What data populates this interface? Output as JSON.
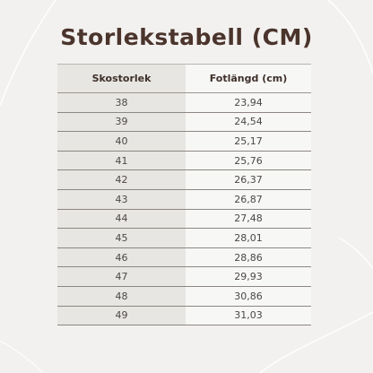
{
  "title": "Storlekstabell (CM)",
  "table": {
    "headers": [
      "Skostorlek",
      "Fotlängd (cm)"
    ],
    "rows": [
      [
        "38",
        "23,94"
      ],
      [
        "39",
        "24,54"
      ],
      [
        "40",
        "25,17"
      ],
      [
        "41",
        "25,76"
      ],
      [
        "42",
        "26,37"
      ],
      [
        "43",
        "26,87"
      ],
      [
        "44",
        "27,48"
      ],
      [
        "45",
        "28,01"
      ],
      [
        "46",
        "28,86"
      ],
      [
        "47",
        "29,93"
      ],
      [
        "48",
        "30,86"
      ],
      [
        "49",
        "31,03"
      ]
    ]
  },
  "colors": {
    "background": "#f2f1ef",
    "title": "#4a342c",
    "size_column": "#e8e6e2",
    "length_column": "#f7f7f6",
    "rule": "#8c8782"
  }
}
